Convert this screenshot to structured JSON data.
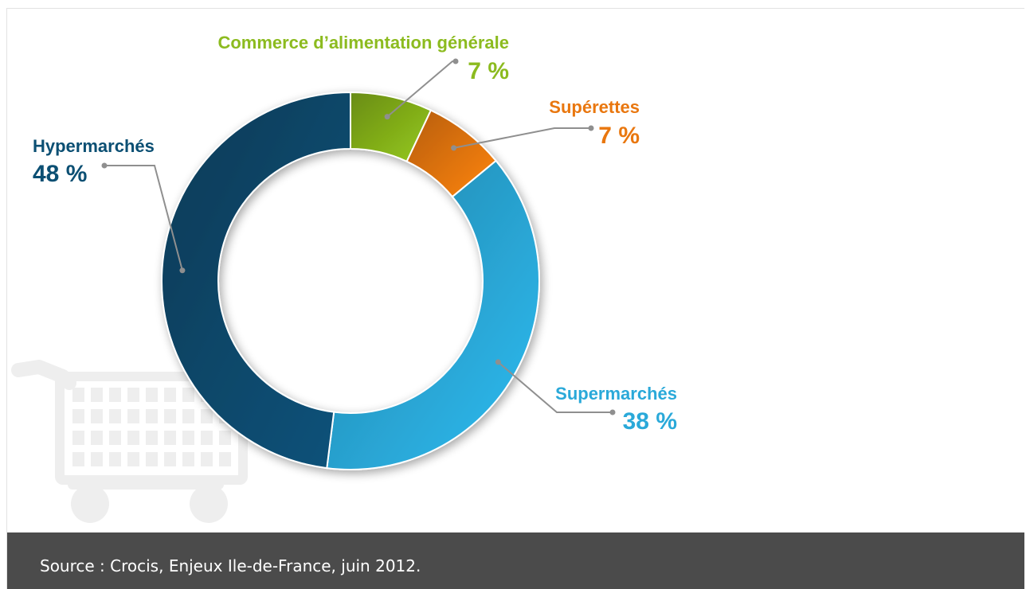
{
  "chart_data": {
    "type": "pie",
    "donut": true,
    "slices": [
      {
        "label": "Commerce d’alimentation générale",
        "value": 7,
        "value_label": "7 %",
        "color": "#86b41a"
      },
      {
        "label": "Supérettes",
        "value": 7,
        "value_label": "7 %",
        "color": "#e9770f"
      },
      {
        "label": "Supermarchés",
        "value": 38,
        "value_label": "38 %",
        "color": "#2aa9d9"
      },
      {
        "label": "Hypermarchés",
        "value": 48,
        "value_label": "48 %",
        "color": "#0a4a6e"
      }
    ],
    "label_colors": {
      "Commerce d’alimentation générale": "#8cbb1f",
      "Supérettes": "#e9770f",
      "Supermarchés": "#2aa9d9",
      "Hypermarchés": "#0b4f73"
    },
    "legend": "none"
  },
  "decoration": {
    "icon": "shopping-cart-icon",
    "color": "#eeeeee"
  },
  "caption": "Source : Crocis, Enjeux Ile-de-France, juin 2012."
}
